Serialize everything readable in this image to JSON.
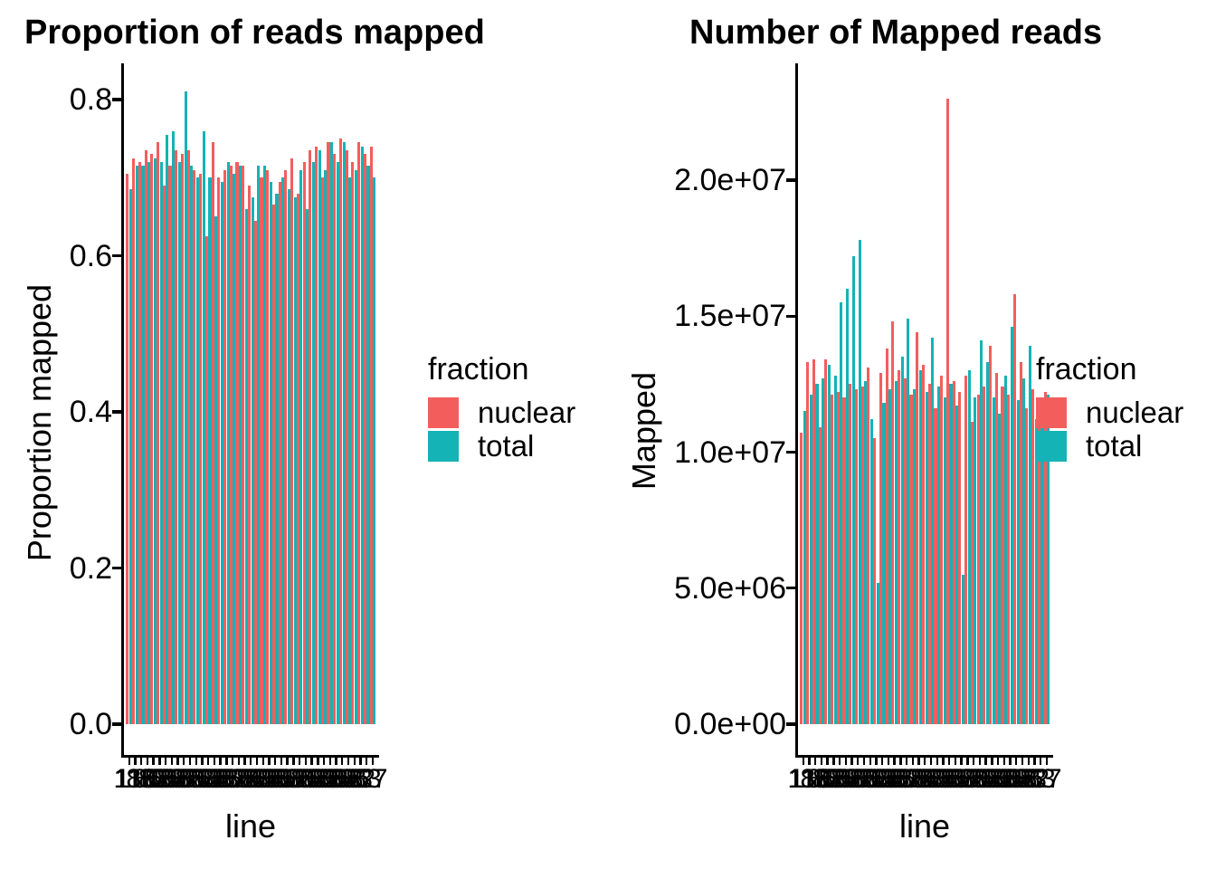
{
  "figure": {
    "background": "#FFFFFF",
    "text_color": "#000000",
    "axis_color": "#000000"
  },
  "legend": {
    "title": "fraction",
    "items": [
      {
        "label": "nuclear",
        "color": "#F35E5D"
      },
      {
        "label": "total",
        "color": "#14B3B5"
      }
    ]
  },
  "chart_data": [
    {
      "type": "bar",
      "title": "Proportion of reads mapped",
      "xlabel": "line",
      "ylabel": "Proportion mapped",
      "legend_title": "fraction",
      "legend_position": "right",
      "grid": false,
      "ylim": [
        0,
        0.845
      ],
      "y_ticks": [
        {
          "value": 0.0,
          "label": "0.0"
        },
        {
          "value": 0.2,
          "label": "0.2"
        },
        {
          "value": 0.4,
          "label": "0.4"
        },
        {
          "value": 0.6,
          "label": "0.6"
        },
        {
          "value": 0.8,
          "label": "0.8"
        }
      ],
      "categories_count": 41,
      "x_tick_labels_legible": false,
      "x_tick_visible_fragments": [
        "11",
        "37"
      ],
      "x_labels_rendered": [
        "11",
        "118",
        "88",
        "86",
        "83",
        "88",
        "85",
        "88",
        "88",
        "82",
        "88",
        "86",
        "88",
        "83",
        "88",
        "88",
        "85",
        "82",
        "88",
        "88",
        "86",
        "88",
        "83",
        "88",
        "88",
        "85",
        "88",
        "82",
        "88",
        "86",
        "88",
        "88",
        "83",
        "88",
        "85",
        "88",
        "88",
        "86",
        "82",
        "83",
        "37"
      ],
      "series": [
        {
          "name": "nuclear",
          "color": "#F35E5D",
          "values": [
            0.705,
            0.725,
            0.72,
            0.735,
            0.73,
            0.745,
            0.69,
            0.715,
            0.735,
            0.73,
            0.735,
            0.71,
            0.705,
            0.625,
            0.745,
            0.7,
            0.71,
            0.715,
            0.72,
            0.715,
            0.69,
            0.645,
            0.7,
            0.71,
            0.665,
            0.695,
            0.71,
            0.725,
            0.68,
            0.72,
            0.735,
            0.74,
            0.7,
            0.745,
            0.73,
            0.75,
            0.735,
            0.72,
            0.745,
            0.73,
            0.74
          ]
        },
        {
          "name": "total",
          "color": "#14B3B5",
          "values": [
            0.685,
            0.715,
            0.715,
            0.72,
            0.725,
            0.72,
            0.755,
            0.76,
            0.72,
            0.81,
            0.715,
            0.7,
            0.76,
            0.7,
            0.65,
            0.695,
            0.72,
            0.705,
            0.715,
            0.66,
            0.675,
            0.715,
            0.715,
            0.695,
            0.68,
            0.7,
            0.685,
            0.675,
            0.71,
            0.66,
            0.72,
            0.735,
            0.71,
            0.745,
            0.72,
            0.745,
            0.7,
            0.71,
            0.74,
            0.715,
            0.7
          ]
        }
      ]
    },
    {
      "type": "bar",
      "title": "Number of Mapped reads",
      "xlabel": "line",
      "ylabel": "Mapped",
      "legend_title": "fraction",
      "legend_position": "right",
      "grid": false,
      "ylim": [
        0,
        24300000
      ],
      "y_ticks": [
        {
          "value": 0,
          "label": "0.0e+00"
        },
        {
          "value": 5000000,
          "label": "5.0e+06"
        },
        {
          "value": 10000000,
          "label": "1.0e+07"
        },
        {
          "value": 15000000,
          "label": "1.5e+07"
        },
        {
          "value": 20000000,
          "label": "2.0e+07"
        }
      ],
      "categories_count": 41,
      "x_tick_labels_legible": false,
      "x_tick_visible_fragments": [
        "11",
        "37"
      ],
      "x_labels_rendered": [
        "11",
        "118",
        "88",
        "86",
        "83",
        "88",
        "85",
        "88",
        "88",
        "82",
        "88",
        "86",
        "88",
        "83",
        "88",
        "88",
        "85",
        "82",
        "88",
        "88",
        "86",
        "88",
        "83",
        "88",
        "88",
        "85",
        "88",
        "82",
        "88",
        "86",
        "88",
        "88",
        "83",
        "88",
        "85",
        "88",
        "88",
        "86",
        "82",
        "83",
        "37"
      ],
      "series": [
        {
          "name": "nuclear",
          "color": "#F35E5D",
          "values": [
            10700000,
            13300000,
            13400000,
            10900000,
            13400000,
            12100000,
            12200000,
            12000000,
            12500000,
            12300000,
            12400000,
            13100000,
            10500000,
            12900000,
            13800000,
            14800000,
            13000000,
            12700000,
            12100000,
            14400000,
            13200000,
            12500000,
            11600000,
            12800000,
            23000000,
            12600000,
            12200000,
            12800000,
            11100000,
            12100000,
            12400000,
            13900000,
            12900000,
            12400000,
            12100000,
            15800000,
            13300000,
            11600000,
            12300000,
            11500000,
            12200000
          ]
        },
        {
          "name": "total",
          "color": "#14B3B5",
          "values": [
            11500000,
            12100000,
            12500000,
            12700000,
            13200000,
            12800000,
            15500000,
            16000000,
            17200000,
            17800000,
            12600000,
            11200000,
            5200000,
            11800000,
            12300000,
            12600000,
            13500000,
            14900000,
            12300000,
            13000000,
            12200000,
            14200000,
            12400000,
            12000000,
            12500000,
            11700000,
            5500000,
            13000000,
            12000000,
            14100000,
            13300000,
            12000000,
            11400000,
            12800000,
            14600000,
            11900000,
            12700000,
            13900000,
            11200000,
            11700000,
            12100000
          ]
        }
      ]
    }
  ]
}
